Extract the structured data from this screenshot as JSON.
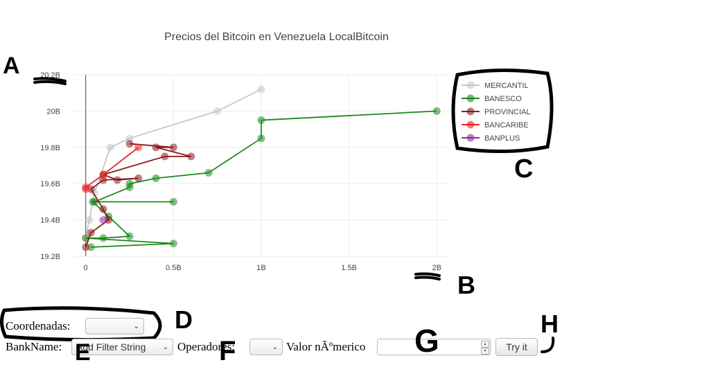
{
  "chart_data": {
    "type": "line",
    "title": "Precios del Bitcoin en Venezuela LocalBitcoin",
    "xlabel": "",
    "ylabel": "",
    "xlim": [
      -0.07,
      2.07
    ],
    "ylim": [
      19.2,
      20.2
    ],
    "x_ticks": [
      {
        "value": 0,
        "label": "0"
      },
      {
        "value": 0.5,
        "label": "0.5B"
      },
      {
        "value": 1,
        "label": "1B"
      },
      {
        "value": 1.5,
        "label": "1.5B"
      },
      {
        "value": 2,
        "label": "2B"
      }
    ],
    "y_ticks": [
      {
        "value": 19.2,
        "label": "19.2B"
      },
      {
        "value": 19.4,
        "label": "19.4B"
      },
      {
        "value": 19.6,
        "label": "19.6B"
      },
      {
        "value": 19.8,
        "label": "19.8B"
      },
      {
        "value": 20,
        "label": "20B"
      },
      {
        "value": 20.2,
        "label": "20.2B"
      }
    ],
    "grid": true,
    "legend_position": "top-right",
    "series": [
      {
        "name": "MERCANTIL",
        "color": "#c7c7c7",
        "x": [
          1.0,
          0.75,
          0.25,
          0.14,
          0.05,
          0.02,
          0.0
        ],
        "y": [
          20.12,
          20.0,
          19.85,
          19.8,
          19.55,
          19.4,
          19.3
        ]
      },
      {
        "name": "BANESCO",
        "color": "#1a8a1a",
        "x": [
          2.0,
          1.0,
          1.0,
          0.7,
          0.4,
          0.25,
          0.25,
          0.05,
          0.5,
          0.04,
          0.13,
          0.25,
          0.1,
          0.0,
          0.5,
          0.03
        ],
        "y": [
          20.0,
          19.95,
          19.85,
          19.66,
          19.63,
          19.6,
          19.58,
          19.5,
          19.5,
          19.5,
          19.42,
          19.31,
          19.3,
          19.3,
          19.27,
          19.25
        ]
      },
      {
        "name": "PROVINCIAL",
        "color": "#8b1a1a",
        "x": [
          0.25,
          0.5,
          0.4,
          0.6,
          0.45,
          0.1,
          0.18,
          0.3,
          0.1,
          0.03,
          0.1,
          0.13,
          0.03,
          0.0
        ],
        "y": [
          19.82,
          19.8,
          19.8,
          19.75,
          19.75,
          19.65,
          19.62,
          19.63,
          19.62,
          19.57,
          19.46,
          19.4,
          19.33,
          19.25
        ]
      },
      {
        "name": "BANCARIBE",
        "color": "#ee2222",
        "x": [
          0.3,
          0.1,
          0.0,
          0.0
        ],
        "y": [
          19.8,
          19.65,
          19.58,
          19.57
        ]
      },
      {
        "name": "BANPLUS",
        "color": "#8e2a9e",
        "x": [
          0.1
        ],
        "y": [
          19.4
        ]
      }
    ]
  },
  "annotations": [
    "A",
    "B",
    "C",
    "D",
    "E",
    "F",
    "G",
    "H"
  ],
  "form": {
    "coordenadas_label": "Coordenadas:",
    "coordenadas_value": "",
    "bankname_label": "BankName:",
    "bankname_value": "Add Filter String",
    "operadores_label": "Operadores:",
    "operadores_value": "",
    "valor_label": "Valor nÃºmerico",
    "valor_value": "",
    "try_button": "Try it"
  }
}
